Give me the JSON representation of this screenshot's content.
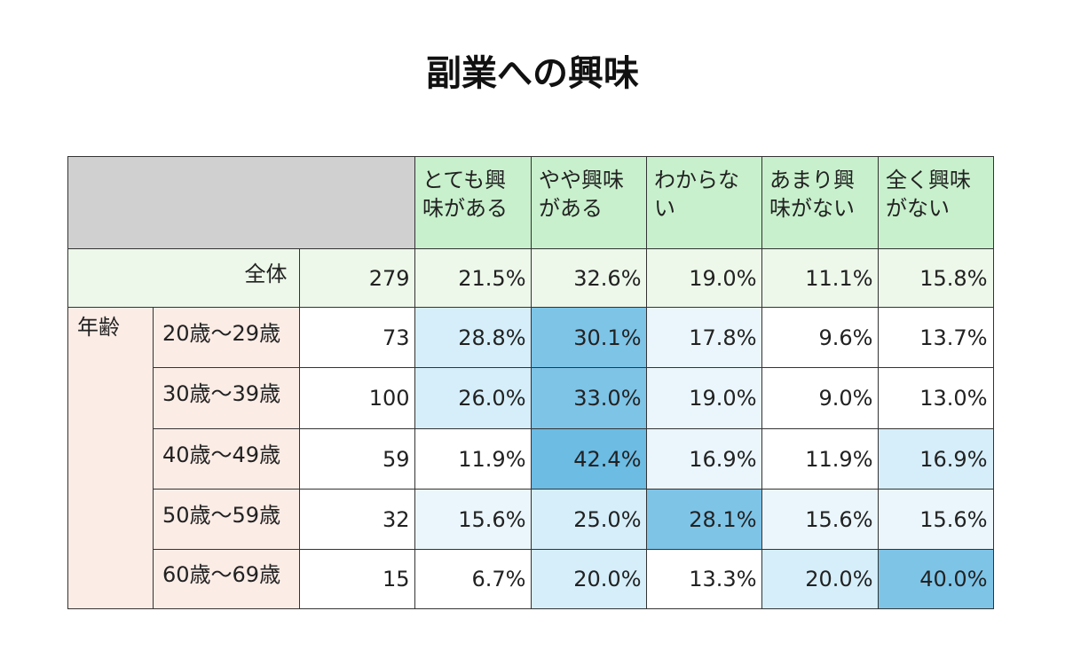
{
  "title": "副業への興味",
  "table": {
    "columns": [
      "とても興味がある",
      "やや興味がある",
      "わからない",
      "あまり興味がない",
      "全く興味がない"
    ],
    "total": {
      "label": "全体",
      "n": "279",
      "values": [
        "21.5%",
        "32.6%",
        "19.0%",
        "11.1%",
        "15.8%"
      ]
    },
    "group_label": "年齢",
    "rows": [
      {
        "label": "20歳～29歳",
        "n": "73",
        "values": [
          "28.8%",
          "30.1%",
          "17.8%",
          "9.6%",
          "13.7%"
        ],
        "colors": [
          "#d5eefa",
          "#7ec4e7",
          "#eaf6fb",
          "#ffffff",
          "#ffffff"
        ]
      },
      {
        "label": "30歳～39歳",
        "n": "100",
        "values": [
          "26.0%",
          "33.0%",
          "19.0%",
          "9.0%",
          "13.0%"
        ],
        "colors": [
          "#d5eefa",
          "#7ec4e7",
          "#eaf6fb",
          "#ffffff",
          "#ffffff"
        ]
      },
      {
        "label": "40歳～49歳",
        "n": "59",
        "values": [
          "11.9%",
          "42.4%",
          "16.9%",
          "11.9%",
          "16.9%"
        ],
        "colors": [
          "#ffffff",
          "#6cbce4",
          "#eaf6fb",
          "#ffffff",
          "#d5eefa"
        ]
      },
      {
        "label": "50歳～59歳",
        "n": "32",
        "values": [
          "15.6%",
          "25.0%",
          "28.1%",
          "15.6%",
          "15.6%"
        ],
        "colors": [
          "#eaf6fb",
          "#d5eefa",
          "#7ec4e7",
          "#eaf6fb",
          "#eaf6fb"
        ]
      },
      {
        "label": "60歳～69歳",
        "n": "15",
        "values": [
          "6.7%",
          "20.0%",
          "13.3%",
          "20.0%",
          "40.0%"
        ],
        "colors": [
          "#ffffff",
          "#d5eefa",
          "#ffffff",
          "#d5eefa",
          "#7ec4e7"
        ]
      }
    ]
  }
}
